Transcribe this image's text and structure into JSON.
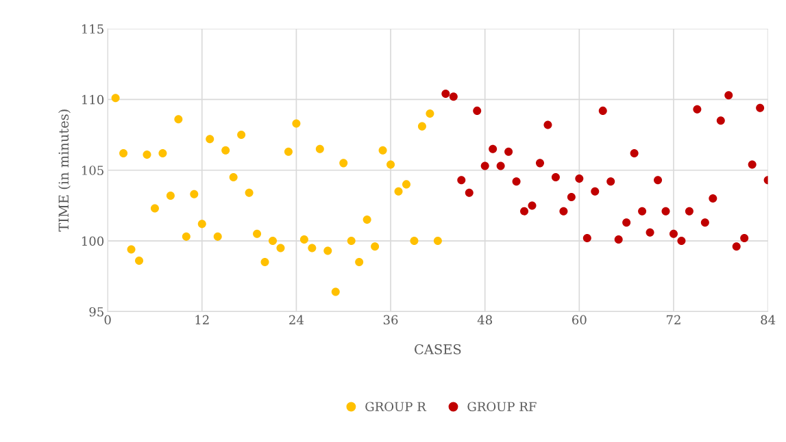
{
  "chart_data": {
    "type": "scatter",
    "xlabel": "CASES",
    "ylabel": "TIME (in minutes)",
    "xlim": [
      0,
      84
    ],
    "xticks": [
      0,
      12,
      24,
      36,
      48,
      60,
      72,
      84
    ],
    "ylim": [
      95,
      115
    ],
    "yticks": [
      95,
      100,
      105,
      110,
      115
    ],
    "grid": true,
    "legend": "bottom",
    "marker": "circle",
    "series": [
      {
        "name": "GROUP R",
        "color": "#ffc000",
        "x": [
          1,
          2,
          3,
          4,
          5,
          6,
          7,
          8,
          9,
          10,
          11,
          12,
          13,
          14,
          15,
          16,
          17,
          18,
          19,
          20,
          21,
          22,
          23,
          24,
          25,
          26,
          27,
          28,
          29,
          30,
          31,
          32,
          33,
          34,
          35,
          36,
          37,
          38,
          39,
          40,
          41,
          42
        ],
        "values": [
          110.1,
          106.2,
          99.4,
          98.6,
          106.1,
          102.3,
          106.2,
          103.2,
          108.6,
          100.3,
          103.3,
          101.2,
          107.2,
          100.3,
          106.4,
          104.5,
          107.5,
          103.4,
          100.5,
          98.5,
          100.0,
          99.5,
          106.3,
          108.3,
          100.1,
          99.5,
          106.5,
          99.3,
          96.4,
          105.5,
          100.0,
          98.5,
          101.5,
          99.6,
          106.4,
          105.4,
          103.5,
          104.0,
          100.0,
          108.1,
          109.0,
          100.0
        ]
      },
      {
        "name": "GROUP RF",
        "color": "#c00000",
        "x": [
          43,
          44,
          45,
          46,
          47,
          48,
          49,
          50,
          51,
          52,
          53,
          54,
          55,
          56,
          57,
          58,
          59,
          60,
          61,
          62,
          63,
          64,
          65,
          66,
          67,
          68,
          69,
          70,
          71,
          72,
          73,
          74,
          75,
          76,
          77,
          78,
          79,
          80,
          81,
          82,
          83,
          84
        ],
        "values": [
          110.4,
          110.2,
          104.3,
          103.4,
          109.2,
          105.3,
          106.5,
          105.3,
          106.3,
          104.2,
          102.1,
          102.5,
          105.5,
          108.2,
          104.5,
          102.1,
          103.1,
          104.4,
          100.2,
          103.5,
          109.2,
          104.2,
          100.1,
          101.3,
          106.2,
          102.1,
          100.6,
          104.3,
          102.1,
          100.5,
          100.0,
          102.1,
          109.3,
          101.3,
          103.0,
          108.5,
          110.3,
          99.6,
          100.2,
          105.4,
          109.4,
          104.3
        ]
      }
    ]
  }
}
